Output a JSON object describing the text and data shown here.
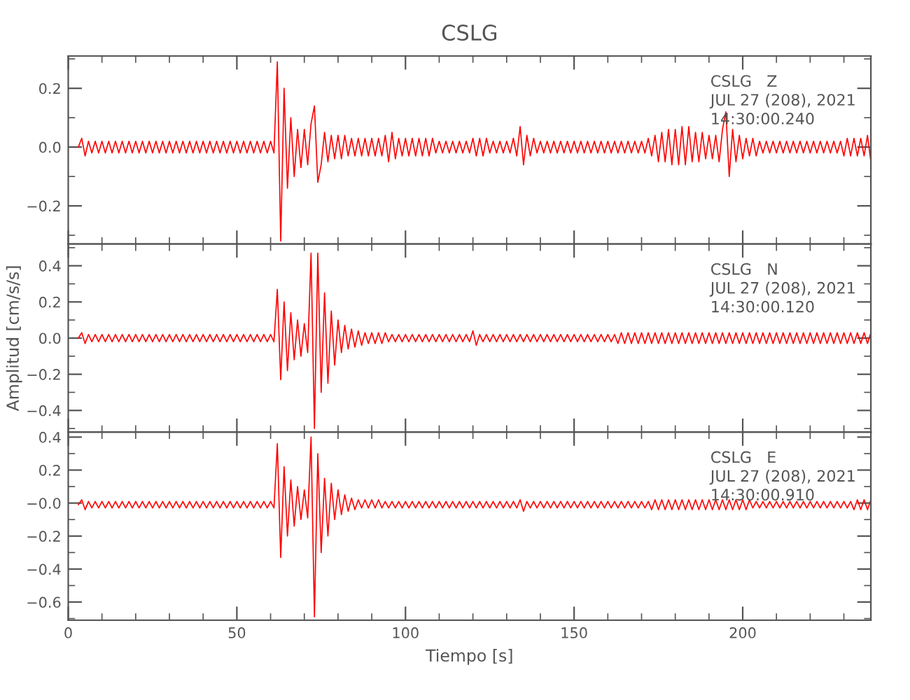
{
  "chart_data": [
    {
      "type": "line",
      "title": "CSLG",
      "annotations": [
        "CSLG   Z",
        "JUL 27 (208), 2021",
        "14:30:00.240"
      ],
      "xlim": [
        0,
        238
      ],
      "ylim": [
        -0.33,
        0.31
      ],
      "yticks": [
        {
          "value": -0.2,
          "label": "−0.2"
        },
        {
          "value": 0.0,
          "label": "0.0"
        },
        {
          "value": 0.2,
          "label": "0.2"
        }
      ],
      "tick_labels": "y",
      "x": [
        3,
        4,
        5,
        6,
        7,
        8,
        9,
        10,
        11,
        12,
        13,
        14,
        15,
        16,
        17,
        18,
        19,
        20,
        21,
        22,
        23,
        24,
        25,
        26,
        27,
        28,
        29,
        30,
        31,
        32,
        33,
        34,
        35,
        36,
        37,
        38,
        39,
        40,
        41,
        42,
        43,
        44,
        45,
        46,
        47,
        48,
        49,
        50,
        51,
        52,
        53,
        54,
        55,
        56,
        57,
        58,
        59,
        60,
        61,
        62,
        63,
        64,
        65,
        66,
        67,
        68,
        69,
        70,
        71,
        72,
        73,
        74,
        75,
        76,
        77,
        78,
        79,
        80,
        81,
        82,
        83,
        84,
        85,
        86,
        87,
        88,
        89,
        90,
        91,
        92,
        93,
        94,
        95,
        96,
        97,
        98,
        99,
        100,
        101,
        102,
        103,
        104,
        105,
        106,
        107,
        108,
        109,
        110,
        111,
        112,
        113,
        114,
        115,
        116,
        117,
        118,
        119,
        120,
        121,
        122,
        123,
        124,
        125,
        126,
        127,
        128,
        129,
        130,
        131,
        132,
        133,
        134,
        135,
        136,
        137,
        138,
        139,
        140,
        141,
        142,
        143,
        144,
        145,
        146,
        147,
        148,
        149,
        150,
        151,
        152,
        153,
        154,
        155,
        156,
        157,
        158,
        159,
        160,
        161,
        162,
        163,
        164,
        165,
        166,
        167,
        168,
        169,
        170,
        171,
        172,
        173,
        174,
        175,
        176,
        177,
        178,
        179,
        180,
        181,
        182,
        183,
        184,
        185,
        186,
        187,
        188,
        189,
        190,
        191,
        192,
        193,
        194,
        195,
        196,
        197,
        198,
        199,
        200,
        201,
        202,
        203,
        204,
        205,
        206,
        207,
        208,
        209,
        210,
        211,
        212,
        213,
        214,
        215,
        216,
        217,
        218,
        219,
        220,
        221,
        222,
        223,
        224,
        225,
        226,
        227,
        228,
        229,
        230,
        231,
        232,
        233,
        234,
        235,
        236,
        237,
        238
      ],
      "series": [
        {
          "color": "#ff0000",
          "values": [
            0.0,
            0.03,
            -0.03,
            0.02,
            -0.02,
            0.02,
            -0.02,
            0.02,
            -0.02,
            0.02,
            -0.02,
            0.02,
            -0.02,
            0.02,
            -0.02,
            0.02,
            -0.02,
            0.02,
            -0.02,
            0.02,
            -0.02,
            0.02,
            -0.02,
            0.02,
            -0.02,
            0.02,
            -0.02,
            0.02,
            -0.02,
            0.02,
            -0.02,
            0.02,
            -0.02,
            0.02,
            -0.02,
            0.02,
            -0.02,
            0.02,
            -0.02,
            0.02,
            -0.02,
            0.02,
            -0.02,
            0.02,
            -0.02,
            0.02,
            -0.02,
            0.02,
            -0.02,
            0.02,
            -0.02,
            0.02,
            -0.02,
            0.02,
            -0.02,
            0.02,
            -0.02,
            0.02,
            -0.02,
            0.29,
            -0.32,
            0.2,
            -0.14,
            0.1,
            -0.1,
            0.06,
            -0.07,
            0.06,
            -0.06,
            0.08,
            0.14,
            -0.12,
            -0.06,
            0.05,
            -0.05,
            0.04,
            -0.04,
            0.04,
            -0.04,
            0.04,
            -0.03,
            0.03,
            -0.03,
            0.03,
            -0.03,
            0.03,
            -0.03,
            0.03,
            -0.03,
            0.03,
            -0.03,
            0.04,
            -0.05,
            0.05,
            -0.04,
            0.03,
            -0.03,
            0.03,
            -0.03,
            0.03,
            -0.03,
            0.03,
            -0.03,
            0.03,
            -0.03,
            0.03,
            -0.02,
            0.02,
            -0.02,
            0.02,
            -0.02,
            0.02,
            -0.02,
            0.02,
            -0.02,
            0.02,
            -0.02,
            0.03,
            -0.03,
            0.03,
            -0.03,
            0.03,
            -0.02,
            0.02,
            -0.02,
            0.02,
            -0.02,
            0.02,
            -0.02,
            0.03,
            -0.03,
            0.07,
            -0.06,
            0.04,
            -0.03,
            0.03,
            -0.02,
            0.02,
            -0.02,
            0.02,
            -0.02,
            0.02,
            -0.02,
            0.02,
            -0.02,
            0.02,
            -0.02,
            0.02,
            -0.02,
            0.02,
            -0.02,
            0.02,
            -0.02,
            0.02,
            -0.02,
            0.02,
            -0.02,
            0.02,
            -0.02,
            0.02,
            -0.02,
            0.02,
            -0.02,
            0.02,
            -0.02,
            0.02,
            -0.02,
            0.02,
            -0.02,
            0.03,
            -0.03,
            0.04,
            -0.05,
            0.05,
            -0.05,
            0.06,
            -0.06,
            0.06,
            -0.06,
            0.07,
            -0.06,
            0.07,
            -0.05,
            0.05,
            -0.05,
            0.05,
            -0.04,
            0.04,
            -0.04,
            0.04,
            -0.05,
            0.06,
            0.12,
            -0.1,
            0.06,
            -0.05,
            0.04,
            -0.04,
            0.03,
            -0.03,
            0.03,
            -0.03,
            0.02,
            -0.02,
            0.02,
            -0.02,
            0.02,
            -0.02,
            0.02,
            -0.02,
            0.02,
            -0.02,
            0.02,
            -0.02,
            0.02,
            -0.02,
            0.02,
            -0.02,
            0.02,
            -0.02,
            0.02,
            -0.02,
            0.02,
            -0.02,
            0.02,
            -0.02,
            0.02,
            -0.03,
            0.03,
            -0.03,
            0.03,
            -0.03,
            0.03,
            -0.03,
            0.04,
            -0.05
          ]
        }
      ]
    },
    {
      "type": "line",
      "ylabel": "Amplitud [cm/s/s]",
      "annotations": [
        "CSLG   N",
        "JUL 27 (208), 2021",
        "14:30:00.120"
      ],
      "xlim": [
        0,
        238
      ],
      "ylim": [
        -0.52,
        0.52
      ],
      "yticks": [
        {
          "value": -0.4,
          "label": "−0.4"
        },
        {
          "value": -0.2,
          "label": "−0.2"
        },
        {
          "value": 0.0,
          "label": "0.0"
        },
        {
          "value": 0.2,
          "label": "0.2"
        },
        {
          "value": 0.4,
          "label": "0.4"
        }
      ],
      "tick_labels": "y",
      "x": [
        3,
        4,
        5,
        6,
        7,
        8,
        9,
        10,
        11,
        12,
        13,
        14,
        15,
        16,
        17,
        18,
        19,
        20,
        21,
        22,
        23,
        24,
        25,
        26,
        27,
        28,
        29,
        30,
        31,
        32,
        33,
        34,
        35,
        36,
        37,
        38,
        39,
        40,
        41,
        42,
        43,
        44,
        45,
        46,
        47,
        48,
        49,
        50,
        51,
        52,
        53,
        54,
        55,
        56,
        57,
        58,
        59,
        60,
        61,
        62,
        63,
        64,
        65,
        66,
        67,
        68,
        69,
        70,
        71,
        72,
        73,
        74,
        75,
        76,
        77,
        78,
        79,
        80,
        81,
        82,
        83,
        84,
        85,
        86,
        87,
        88,
        89,
        90,
        91,
        92,
        93,
        94,
        95,
        96,
        97,
        98,
        99,
        100,
        101,
        102,
        103,
        104,
        105,
        106,
        107,
        108,
        109,
        110,
        111,
        112,
        113,
        114,
        115,
        116,
        117,
        118,
        119,
        120,
        121,
        122,
        123,
        124,
        125,
        126,
        127,
        128,
        129,
        130,
        131,
        132,
        133,
        134,
        135,
        136,
        137,
        138,
        139,
        140,
        141,
        142,
        143,
        144,
        145,
        146,
        147,
        148,
        149,
        150,
        151,
        152,
        153,
        154,
        155,
        156,
        157,
        158,
        159,
        160,
        161,
        162,
        163,
        164,
        165,
        166,
        167,
        168,
        169,
        170,
        171,
        172,
        173,
        174,
        175,
        176,
        177,
        178,
        179,
        180,
        181,
        182,
        183,
        184,
        185,
        186,
        187,
        188,
        189,
        190,
        191,
        192,
        193,
        194,
        195,
        196,
        197,
        198,
        199,
        200,
        201,
        202,
        203,
        204,
        205,
        206,
        207,
        208,
        209,
        210,
        211,
        212,
        213,
        214,
        215,
        216,
        217,
        218,
        219,
        220,
        221,
        222,
        223,
        224,
        225,
        226,
        227,
        228,
        229,
        230,
        231,
        232,
        233,
        234,
        235,
        236,
        237,
        238
      ],
      "series": [
        {
          "color": "#ff0000",
          "values": [
            0.0,
            0.03,
            -0.03,
            0.02,
            -0.02,
            0.02,
            -0.02,
            0.02,
            -0.02,
            0.02,
            -0.02,
            0.02,
            -0.02,
            0.02,
            -0.02,
            0.02,
            -0.02,
            0.02,
            -0.02,
            0.02,
            -0.02,
            0.02,
            -0.02,
            0.02,
            -0.02,
            0.02,
            -0.02,
            0.02,
            -0.02,
            0.02,
            -0.02,
            0.02,
            -0.02,
            0.02,
            -0.02,
            0.02,
            -0.02,
            0.02,
            -0.02,
            0.02,
            -0.02,
            0.02,
            -0.02,
            0.02,
            -0.02,
            0.02,
            -0.02,
            0.02,
            -0.02,
            0.02,
            -0.02,
            0.02,
            -0.02,
            0.02,
            -0.02,
            0.02,
            -0.02,
            0.02,
            -0.02,
            0.27,
            -0.23,
            0.2,
            -0.18,
            0.14,
            -0.12,
            0.1,
            -0.1,
            0.08,
            -0.08,
            0.47,
            -0.5,
            0.47,
            -0.3,
            0.25,
            -0.25,
            0.15,
            -0.15,
            0.1,
            -0.08,
            0.07,
            -0.06,
            0.05,
            -0.05,
            0.04,
            -0.04,
            0.03,
            -0.03,
            0.03,
            -0.03,
            0.03,
            -0.03,
            0.03,
            -0.02,
            0.02,
            -0.02,
            0.02,
            -0.02,
            0.02,
            -0.02,
            0.02,
            -0.02,
            0.02,
            -0.02,
            0.02,
            -0.02,
            0.02,
            -0.02,
            0.02,
            -0.02,
            0.02,
            -0.02,
            0.02,
            -0.02,
            0.02,
            -0.02,
            0.02,
            -0.02,
            0.04,
            -0.04,
            0.02,
            -0.02,
            0.02,
            -0.02,
            0.02,
            -0.02,
            0.02,
            -0.02,
            0.02,
            -0.02,
            0.02,
            -0.02,
            0.02,
            -0.02,
            0.02,
            -0.02,
            0.02,
            -0.02,
            0.02,
            -0.02,
            0.02,
            -0.02,
            0.02,
            -0.02,
            0.02,
            -0.02,
            0.02,
            -0.02,
            0.02,
            -0.02,
            0.02,
            -0.02,
            0.02,
            -0.02,
            0.02,
            -0.02,
            0.02,
            -0.02,
            0.02,
            -0.02,
            0.02,
            -0.03,
            0.03,
            -0.03,
            0.03,
            -0.03,
            0.03,
            -0.03,
            0.03,
            -0.03,
            0.03,
            -0.03,
            0.03,
            -0.03,
            0.03,
            -0.03,
            0.03,
            -0.03,
            0.03,
            -0.03,
            0.03,
            -0.03,
            0.03,
            -0.03,
            0.03,
            -0.03,
            0.03,
            -0.03,
            0.03,
            -0.03,
            0.03,
            -0.03,
            0.03,
            -0.03,
            0.03,
            -0.03,
            0.03,
            -0.03,
            0.03,
            -0.03,
            0.03,
            -0.03,
            0.03,
            -0.03,
            0.03,
            -0.03,
            0.03,
            -0.03,
            0.03,
            -0.03,
            0.03,
            -0.03,
            0.03,
            -0.03,
            0.03,
            -0.03,
            0.03,
            -0.03,
            0.03,
            -0.03,
            0.03,
            -0.03,
            0.03,
            -0.03,
            0.03,
            -0.03,
            0.03,
            -0.03,
            0.03,
            -0.03,
            0.03,
            -0.03,
            0.03,
            -0.03,
            0.03,
            -0.03,
            0.03
          ]
        }
      ]
    },
    {
      "type": "line",
      "xlabel": "Tiempo [s]",
      "annotations": [
        "CSLG   E",
        "JUL 27 (208), 2021",
        "14:30:00.910"
      ],
      "xlim": [
        0,
        238
      ],
      "xticks": [
        0,
        50,
        100,
        150,
        200
      ],
      "ylim": [
        -0.71,
        0.43
      ],
      "yticks": [
        {
          "value": -0.6,
          "label": "−0.6"
        },
        {
          "value": -0.4,
          "label": "−0.4"
        },
        {
          "value": -0.2,
          "label": "−0.2"
        },
        {
          "value": 0.0,
          "label": "−0.0"
        },
        {
          "value": 0.2,
          "label": "0.2"
        },
        {
          "value": 0.4,
          "label": "0.4"
        }
      ],
      "x": [
        3,
        4,
        5,
        6,
        7,
        8,
        9,
        10,
        11,
        12,
        13,
        14,
        15,
        16,
        17,
        18,
        19,
        20,
        21,
        22,
        23,
        24,
        25,
        26,
        27,
        28,
        29,
        30,
        31,
        32,
        33,
        34,
        35,
        36,
        37,
        38,
        39,
        40,
        41,
        42,
        43,
        44,
        45,
        46,
        47,
        48,
        49,
        50,
        51,
        52,
        53,
        54,
        55,
        56,
        57,
        58,
        59,
        60,
        61,
        62,
        63,
        64,
        65,
        66,
        67,
        68,
        69,
        70,
        71,
        72,
        73,
        74,
        75,
        76,
        77,
        78,
        79,
        80,
        81,
        82,
        83,
        84,
        85,
        86,
        87,
        88,
        89,
        90,
        91,
        92,
        93,
        94,
        95,
        96,
        97,
        98,
        99,
        100,
        101,
        102,
        103,
        104,
        105,
        106,
        107,
        108,
        109,
        110,
        111,
        112,
        113,
        114,
        115,
        116,
        117,
        118,
        119,
        120,
        121,
        122,
        123,
        124,
        125,
        126,
        127,
        128,
        129,
        130,
        131,
        132,
        133,
        134,
        135,
        136,
        137,
        138,
        139,
        140,
        141,
        142,
        143,
        144,
        145,
        146,
        147,
        148,
        149,
        150,
        151,
        152,
        153,
        154,
        155,
        156,
        157,
        158,
        159,
        160,
        161,
        162,
        163,
        164,
        165,
        166,
        167,
        168,
        169,
        170,
        171,
        172,
        173,
        174,
        175,
        176,
        177,
        178,
        179,
        180,
        181,
        182,
        183,
        184,
        185,
        186,
        187,
        188,
        189,
        190,
        191,
        192,
        193,
        194,
        195,
        196,
        197,
        198,
        199,
        200,
        201,
        202,
        203,
        204,
        205,
        206,
        207,
        208,
        209,
        210,
        211,
        212,
        213,
        214,
        215,
        216,
        217,
        218,
        219,
        220,
        221,
        222,
        223,
        224,
        225,
        226,
        227,
        228,
        229,
        230,
        231,
        232,
        233,
        234,
        235,
        236,
        237,
        238
      ],
      "series": [
        {
          "color": "#ff0000",
          "values": [
            -0.01,
            0.02,
            -0.04,
            0.01,
            -0.03,
            0.01,
            -0.03,
            0.01,
            -0.03,
            0.01,
            -0.03,
            0.01,
            -0.03,
            0.01,
            -0.03,
            0.01,
            -0.03,
            0.01,
            -0.03,
            0.01,
            -0.03,
            0.01,
            -0.03,
            0.01,
            -0.03,
            0.01,
            -0.03,
            0.01,
            -0.03,
            0.01,
            -0.03,
            0.01,
            -0.03,
            0.01,
            -0.03,
            0.01,
            -0.03,
            0.01,
            -0.03,
            0.01,
            -0.03,
            0.01,
            -0.03,
            0.01,
            -0.03,
            0.01,
            -0.03,
            0.01,
            -0.03,
            0.01,
            -0.03,
            0.01,
            -0.03,
            0.01,
            -0.03,
            0.01,
            -0.03,
            0.01,
            -0.03,
            0.36,
            -0.33,
            0.22,
            -0.2,
            0.14,
            -0.14,
            0.1,
            -0.1,
            0.08,
            -0.09,
            0.4,
            -0.69,
            0.3,
            -0.3,
            0.15,
            -0.2,
            0.12,
            -0.1,
            0.08,
            -0.07,
            0.05,
            -0.05,
            0.03,
            -0.04,
            0.02,
            -0.03,
            0.02,
            -0.03,
            0.02,
            -0.03,
            0.02,
            -0.03,
            0.01,
            -0.03,
            0.01,
            -0.03,
            0.01,
            -0.03,
            0.01,
            -0.03,
            0.01,
            -0.03,
            0.01,
            -0.03,
            0.01,
            -0.03,
            0.01,
            -0.03,
            0.01,
            -0.03,
            0.01,
            -0.03,
            0.01,
            -0.03,
            0.01,
            -0.03,
            0.01,
            -0.03,
            0.01,
            -0.03,
            0.01,
            -0.03,
            0.01,
            -0.03,
            0.01,
            -0.03,
            0.01,
            -0.03,
            0.01,
            -0.03,
            0.01,
            -0.03,
            0.02,
            -0.05,
            0.01,
            -0.03,
            0.01,
            -0.03,
            0.01,
            -0.03,
            0.01,
            -0.03,
            0.01,
            -0.03,
            0.01,
            -0.03,
            0.01,
            -0.03,
            0.01,
            -0.03,
            0.01,
            -0.03,
            0.01,
            -0.03,
            0.01,
            -0.03,
            0.01,
            -0.03,
            0.01,
            -0.03,
            0.01,
            -0.03,
            0.01,
            -0.03,
            0.01,
            -0.03,
            0.01,
            -0.03,
            0.01,
            -0.03,
            0.01,
            -0.04,
            0.02,
            -0.04,
            0.02,
            -0.04,
            0.02,
            -0.04,
            0.02,
            -0.04,
            0.02,
            -0.04,
            0.02,
            -0.04,
            0.02,
            -0.04,
            0.02,
            -0.04,
            0.02,
            -0.04,
            0.02,
            -0.04,
            0.02,
            -0.04,
            0.02,
            -0.04,
            0.02,
            -0.04,
            0.02,
            -0.04,
            0.02,
            -0.03,
            0.01,
            -0.03,
            0.01,
            -0.03,
            0.01,
            -0.03,
            0.01,
            -0.03,
            0.01,
            -0.03,
            0.01,
            -0.03,
            0.01,
            -0.03,
            0.01,
            -0.03,
            0.01,
            -0.03,
            0.01,
            -0.03,
            0.01,
            -0.03,
            0.01,
            -0.03,
            0.01,
            -0.03,
            0.01,
            -0.03,
            0.01,
            -0.04,
            0.02,
            -0.04,
            0.02,
            -0.04,
            0.02
          ]
        }
      ]
    }
  ]
}
